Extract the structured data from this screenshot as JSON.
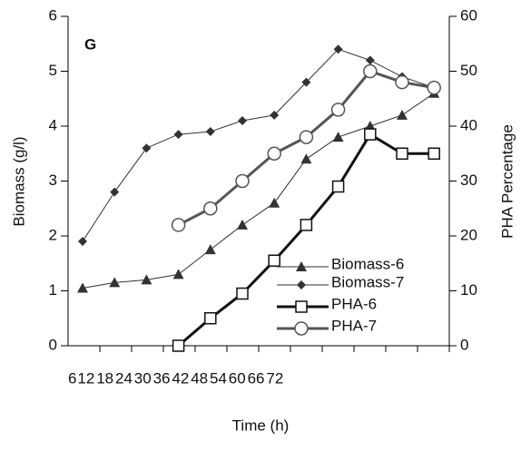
{
  "chart_data": {
    "type": "line",
    "annotation": "G",
    "x_label": "Time (h)",
    "y_label": "Biomass (g/l)",
    "y2_label": "PHA Percentage",
    "categories": [
      "6",
      "12",
      "18",
      "24",
      "30",
      "36",
      "42",
      "48",
      "54",
      "60",
      "66",
      "72"
    ],
    "ylim": [
      0,
      6
    ],
    "yticks": [
      0,
      1,
      2,
      3,
      4,
      5,
      6
    ],
    "y2lim": [
      0,
      60
    ],
    "y2ticks": [
      0,
      10,
      20,
      30,
      40,
      50,
      60
    ],
    "series": [
      {
        "name": "Biomass-6",
        "color": "#333333",
        "marker": "triangle",
        "values": [
          1.05,
          1.15,
          1.2,
          1.3,
          1.75,
          2.2,
          2.6,
          3.4,
          3.8,
          4.0,
          4.2,
          4.6
        ]
      },
      {
        "name": "Biomass-7",
        "color": "#333333",
        "marker": "diamond",
        "values": [
          1.9,
          2.8,
          3.6,
          3.85,
          3.9,
          4.1,
          4.2,
          4.8,
          5.4,
          5.2,
          4.9,
          4.7
        ]
      },
      {
        "name": "PHA-6",
        "color": "#111111",
        "marker": "square",
        "axis": "y2",
        "values": [
          null,
          null,
          null,
          0,
          5,
          9.5,
          15.5,
          22,
          29,
          38.5,
          35,
          35
        ]
      },
      {
        "name": "PHA-7",
        "color": "#555555",
        "marker": "circle",
        "axis": "y2",
        "values": [
          null,
          null,
          null,
          22,
          25,
          30,
          35,
          38,
          43,
          50,
          48,
          47
        ]
      }
    ]
  }
}
